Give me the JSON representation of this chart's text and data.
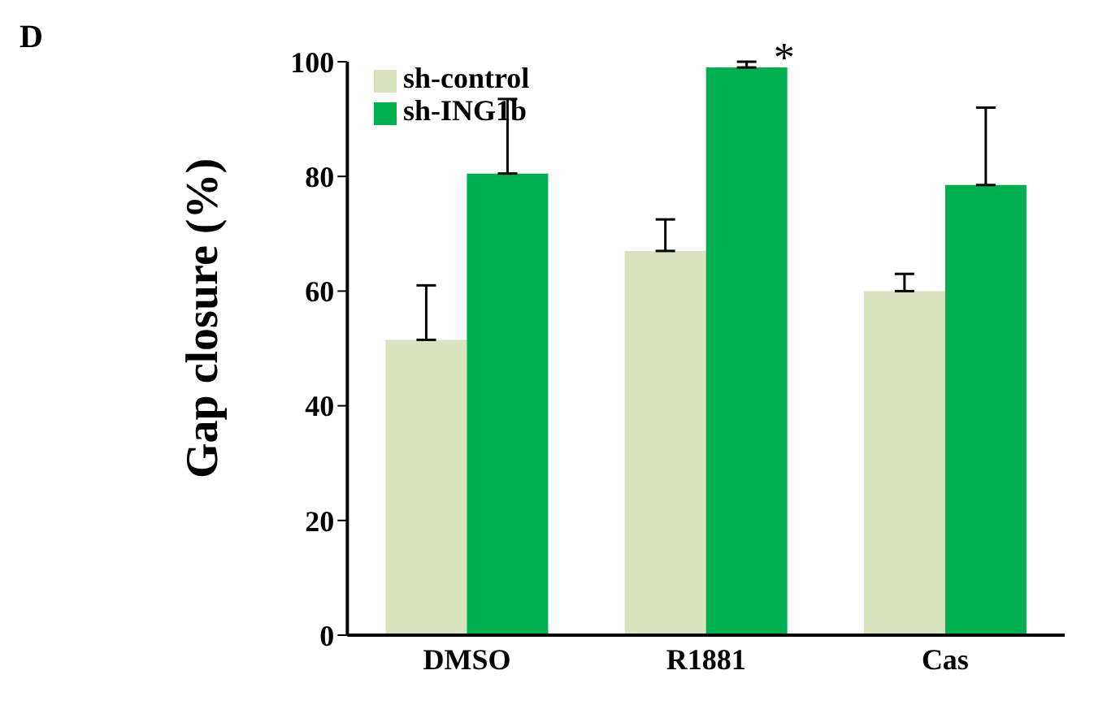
{
  "chart_data": {
    "type": "bar",
    "ylabel": "Gap closure (%)",
    "categories": [
      "DMSO",
      "R1881",
      "Cas"
    ],
    "series": [
      {
        "name": "sh-control",
        "color": "#d9e4bf",
        "values": [
          51.5,
          67,
          60
        ],
        "errors": [
          [
            51.5,
            61
          ],
          [
            67,
            72.5
          ],
          [
            60,
            63
          ]
        ]
      },
      {
        "name": "sh-ING1b",
        "color": "#00b050",
        "values": [
          80.5,
          99,
          78.5
        ],
        "errors": [
          [
            80.5,
            93.5
          ],
          [
            99,
            100
          ],
          [
            78.5,
            92
          ]
        ]
      }
    ],
    "ylim": [
      0,
      100
    ],
    "yticks": [
      0,
      20,
      40,
      60,
      80,
      100
    ],
    "grid": false,
    "legend": "top left",
    "annotations": [
      "D",
      {
        "text": "*",
        "x": "R1881",
        "y": 100
      }
    ]
  }
}
